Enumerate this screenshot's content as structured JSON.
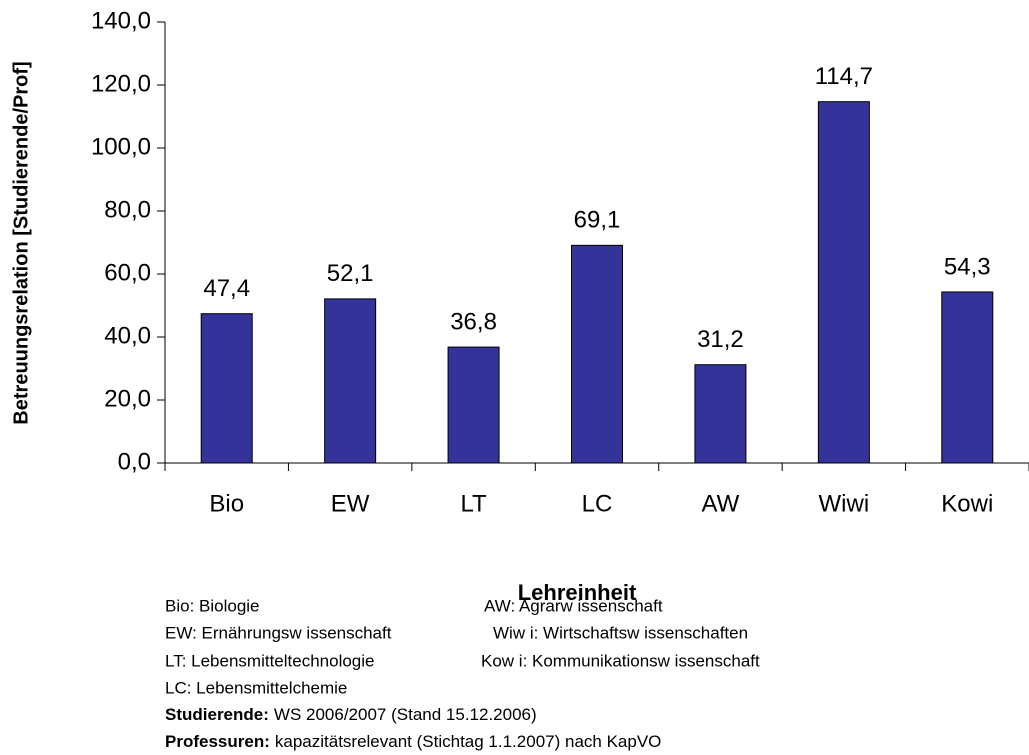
{
  "chart_data": {
    "type": "bar",
    "ylabel": "Betreuungsrelation [Studierende/Prof]",
    "xlabel": "Lehreinheit",
    "categories": [
      "Bio",
      "EW",
      "LT",
      "LC",
      "AW",
      "Wiwi",
      "Kowi"
    ],
    "values": [
      47.4,
      52.1,
      36.8,
      69.1,
      31.2,
      114.7,
      54.3
    ],
    "value_labels": [
      "47,4",
      "52,1",
      "36,8",
      "69,1",
      "31,2",
      "114,7",
      "54,3"
    ],
    "color": "#333399",
    "ylim": [
      0,
      140
    ],
    "yticks": [
      {
        "value": 0,
        "label": "0,0"
      },
      {
        "value": 20,
        "label": "20,0"
      },
      {
        "value": 40,
        "label": "40,0"
      },
      {
        "value": 60,
        "label": "60,0"
      },
      {
        "value": 80,
        "label": "80,0"
      },
      {
        "value": 100,
        "label": "100,0"
      },
      {
        "value": 120,
        "label": "120,0"
      },
      {
        "value": 140,
        "label": "140,0"
      }
    ],
    "grid": false,
    "notes": {
      "abbreviations": [
        [
          "Bio: Biologie",
          "AW: Agrarw issenschaft"
        ],
        [
          "EW: Ernährungsw issenschaft",
          "Wiw i: Wirtschaftsw issenschaften"
        ],
        [
          "LT: Lebensmitteltechnologie",
          "Kow i: Kommunikationsw issenschaft"
        ],
        [
          "LC: Lebensmittelchemie"
        ]
      ],
      "sources": [
        {
          "label": "Studierende:",
          "text": "WS 2006/2007 (Stand 15.12.2006)"
        },
        {
          "label": "Professuren:",
          "text": "kapazitätsrelevant (Stichtag 1.1.2007) nach KapVO"
        }
      ]
    }
  }
}
